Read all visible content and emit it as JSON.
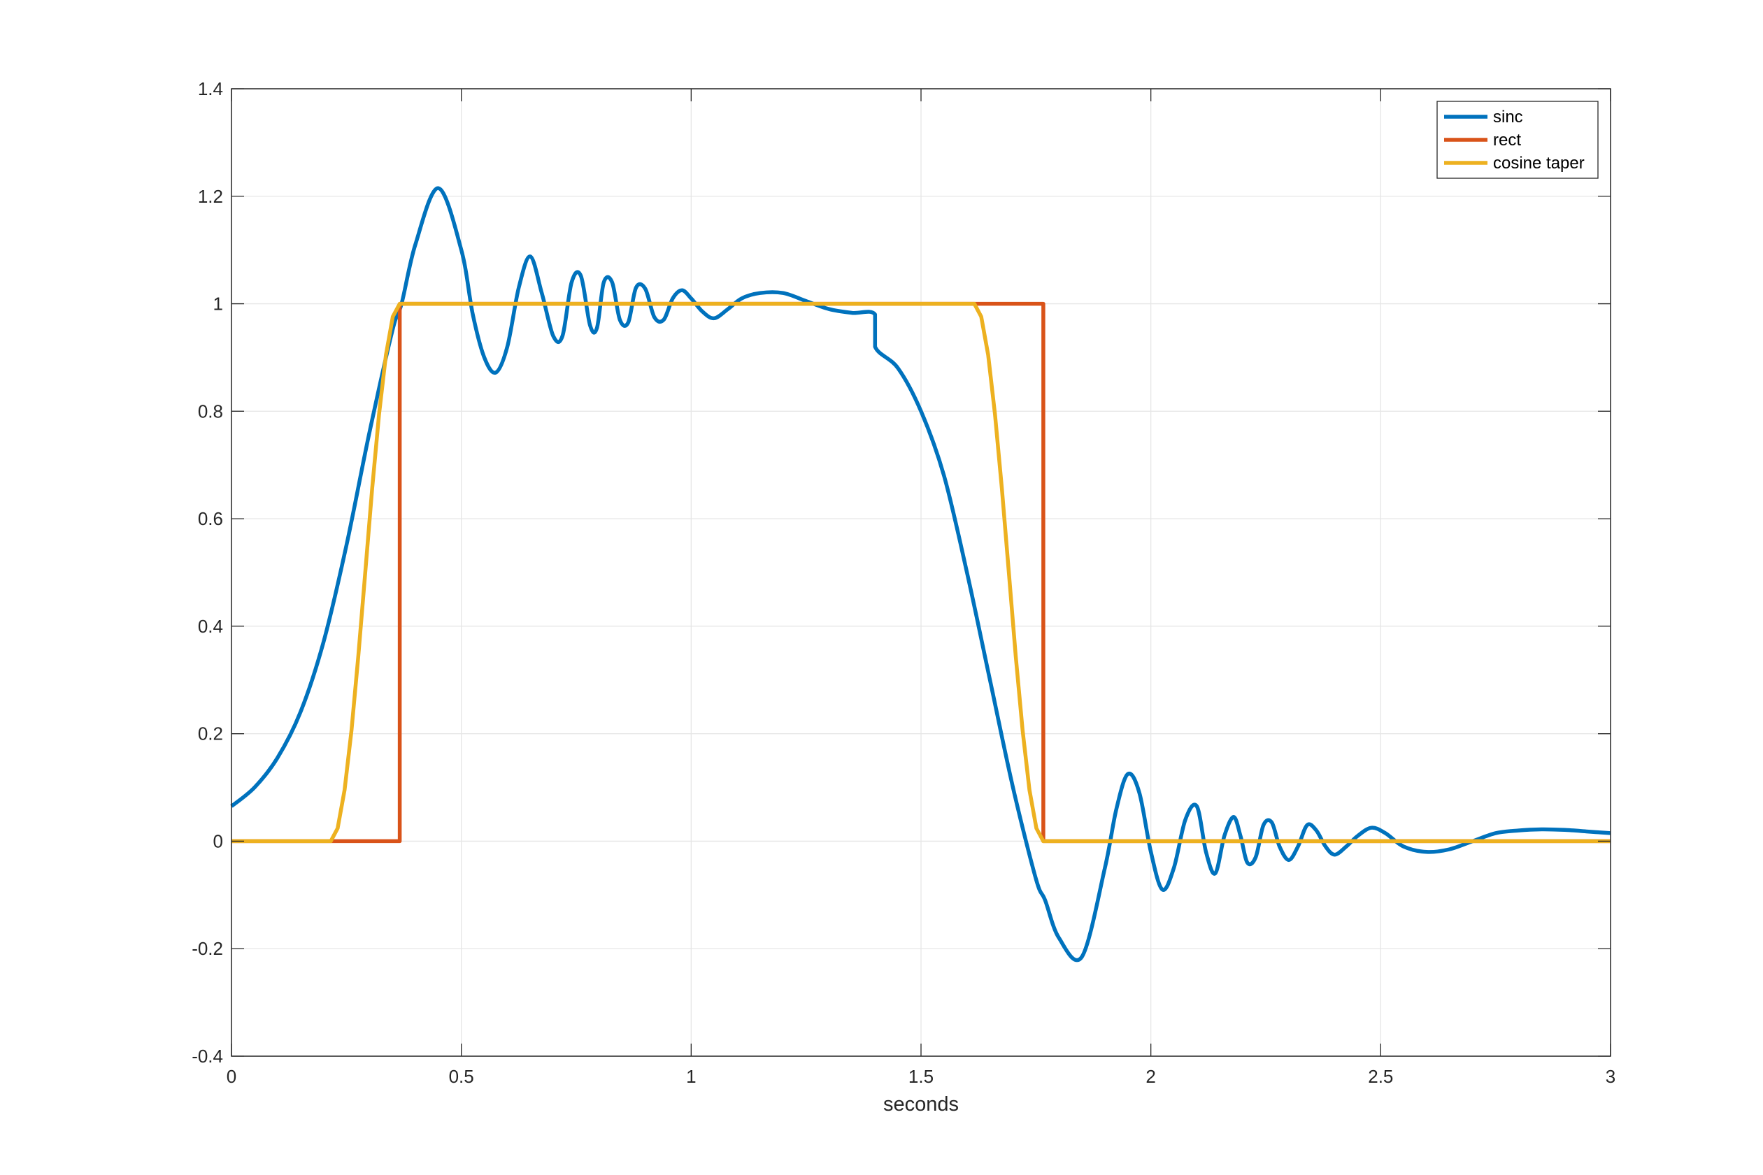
{
  "chart_data": {
    "type": "line",
    "title": "",
    "xlabel": "seconds",
    "ylabel": "",
    "xlim": [
      0,
      3
    ],
    "ylim": [
      -0.4,
      1.4
    ],
    "x_ticks": [
      0,
      0.5,
      1,
      1.5,
      2,
      2.5,
      3
    ],
    "x_tick_labels": [
      "0",
      "0.5",
      "1",
      "1.5",
      "2",
      "2.5",
      "3"
    ],
    "y_ticks": [
      -0.4,
      -0.2,
      0,
      0.2,
      0.4,
      0.6,
      0.8,
      1,
      1.2,
      1.4
    ],
    "y_tick_labels": [
      "-0.4",
      "-0.2",
      "0",
      "0.2",
      "0.4",
      "0.6",
      "0.8",
      "1",
      "1.2",
      "1.4"
    ],
    "grid": true,
    "legend_position": "top-right",
    "series": [
      {
        "name": "sinc",
        "color": "#0072BD",
        "x": [
          0,
          0.05,
          0.1,
          0.15,
          0.2,
          0.25,
          0.3,
          0.35,
          0.37,
          0.4,
          0.45,
          0.5,
          0.525,
          0.55,
          0.575,
          0.6,
          0.625,
          0.65,
          0.675,
          0.7,
          0.72,
          0.74,
          0.76,
          0.78,
          0.795,
          0.81,
          0.828,
          0.845,
          0.863,
          0.88,
          0.9,
          0.92,
          0.94,
          0.96,
          0.98,
          1.0,
          1.025,
          1.05,
          1.08,
          1.11,
          1.15,
          1.2,
          1.25,
          1.3,
          1.35,
          1.4,
          1.4001,
          1.45,
          1.5,
          1.55,
          1.6,
          1.65,
          1.7,
          1.75,
          1.77,
          1.8,
          1.85,
          1.9,
          1.925,
          1.95,
          1.975,
          2.0,
          2.025,
          2.05,
          2.075,
          2.1,
          2.12,
          2.14,
          2.16,
          2.18,
          2.195,
          2.21,
          2.228,
          2.245,
          2.263,
          2.28,
          2.3,
          2.32,
          2.34,
          2.36,
          2.38,
          2.4,
          2.425,
          2.45,
          2.48,
          2.51,
          2.55,
          2.6,
          2.65,
          2.7,
          2.75,
          2.8,
          2.85,
          2.9,
          2.95,
          3.0
        ],
        "y": [
          0.065,
          0.1,
          0.155,
          0.24,
          0.37,
          0.55,
          0.76,
          0.95,
          1.0,
          1.11,
          1.215,
          1.1,
          0.98,
          0.9,
          0.872,
          0.92,
          1.03,
          1.088,
          1.02,
          0.94,
          0.94,
          1.04,
          1.052,
          0.96,
          0.955,
          1.04,
          1.04,
          0.97,
          0.965,
          1.03,
          1.028,
          0.975,
          0.97,
          1.01,
          1.025,
          1.01,
          0.985,
          0.973,
          0.99,
          1.01,
          1.02,
          1.02,
          1.005,
          0.99,
          0.983,
          0.98,
          0.92,
          0.88,
          0.8,
          0.68,
          0.5,
          0.3,
          0.1,
          -0.07,
          -0.11,
          -0.18,
          -0.215,
          -0.05,
          0.06,
          0.125,
          0.09,
          -0.02,
          -0.09,
          -0.05,
          0.04,
          0.065,
          -0.02,
          -0.06,
          0.01,
          0.045,
          0.01,
          -0.04,
          -0.03,
          0.03,
          0.035,
          -0.01,
          -0.035,
          -0.01,
          0.03,
          0.02,
          -0.01,
          -0.025,
          -0.01,
          0.01,
          0.025,
          0.015,
          -0.01,
          -0.02,
          -0.015,
          0.0,
          0.015,
          0.02,
          0.022,
          0.021,
          0.018,
          0.015
        ]
      },
      {
        "name": "rect",
        "color": "#D95319",
        "x": [
          0,
          0.366,
          0.366,
          1.766,
          1.766,
          3.0
        ],
        "y": [
          0,
          0,
          1,
          1,
          0,
          0
        ]
      },
      {
        "name": "cosine taper",
        "color": "#EDB120",
        "x": [
          0,
          0.216,
          0.231,
          0.246,
          0.261,
          0.276,
          0.291,
          0.306,
          0.321,
          0.336,
          0.351,
          0.366,
          1.616,
          1.631,
          1.646,
          1.661,
          1.676,
          1.691,
          1.706,
          1.721,
          1.736,
          1.751,
          1.766,
          3.0
        ],
        "y": [
          0,
          0,
          0.024,
          0.095,
          0.206,
          0.345,
          0.5,
          0.655,
          0.794,
          0.905,
          0.976,
          1,
          1,
          0.976,
          0.905,
          0.794,
          0.655,
          0.5,
          0.345,
          0.206,
          0.095,
          0.024,
          0,
          0
        ]
      }
    ]
  }
}
